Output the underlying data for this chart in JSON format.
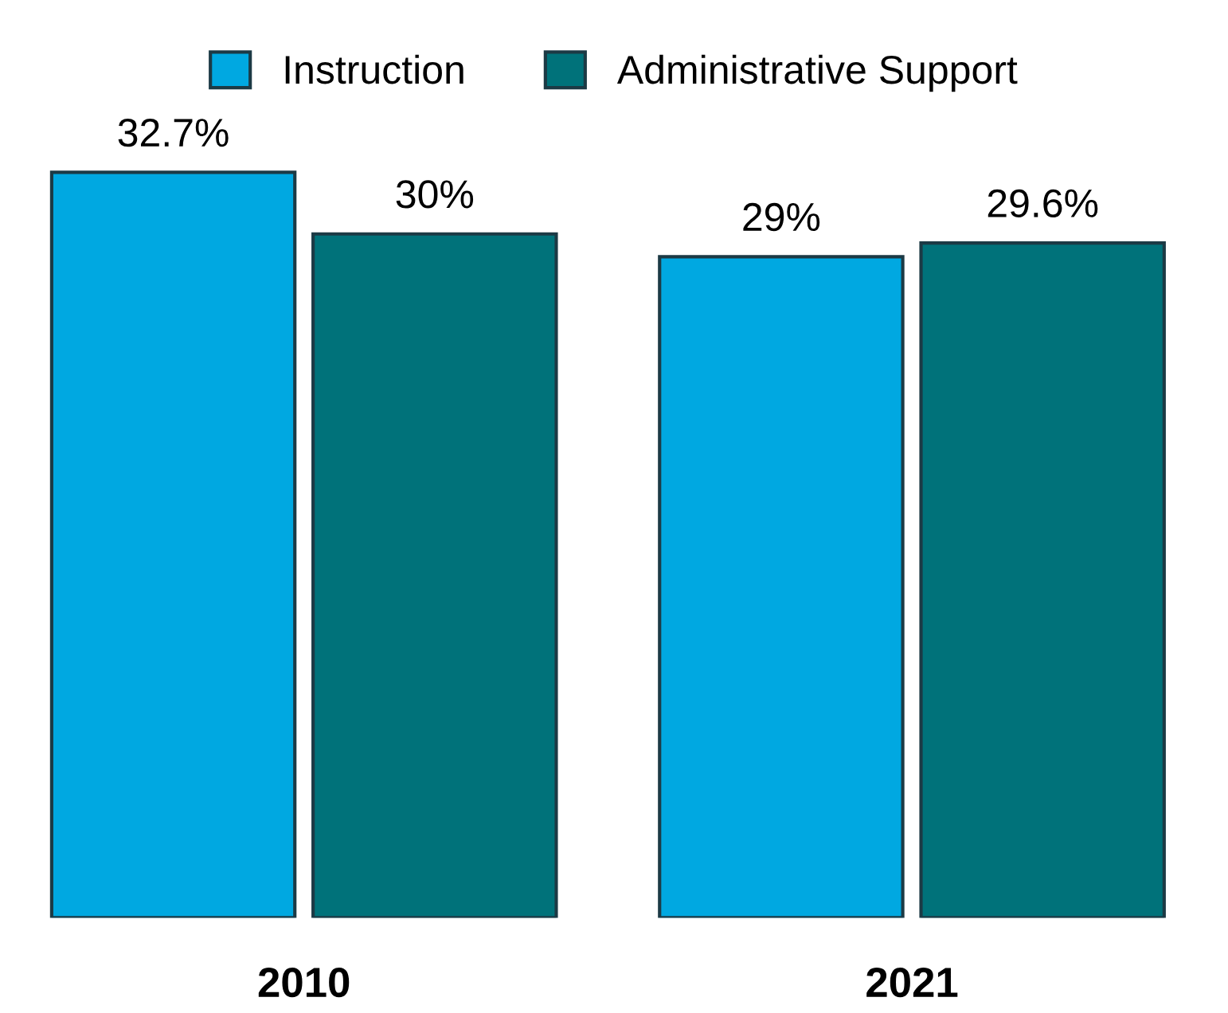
{
  "chart_data": {
    "type": "bar",
    "categories": [
      "2010",
      "2021"
    ],
    "series": [
      {
        "name": "Instruction",
        "color": "#00a8e1",
        "values": [
          32.7,
          29
        ],
        "value_labels": [
          "32.7%",
          "29%"
        ]
      },
      {
        "name": "Administrative Support",
        "color": "#00727a",
        "values": [
          30,
          29.6
        ],
        "value_labels": [
          "30%",
          "29.6%"
        ]
      }
    ],
    "legend": "top",
    "grid": false
  }
}
